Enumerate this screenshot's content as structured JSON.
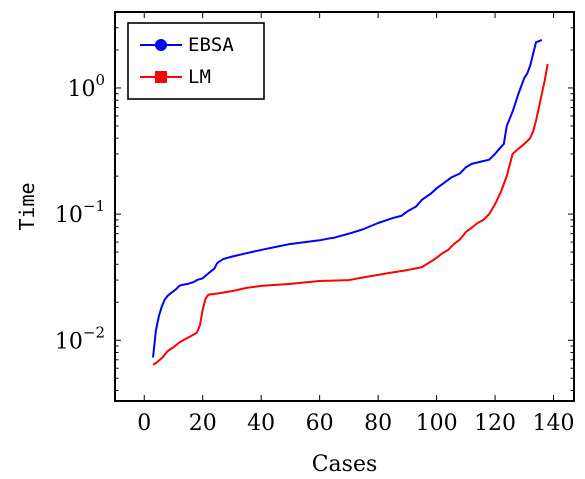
{
  "chart_data": {
    "type": "line",
    "xlabel": "Cases",
    "ylabel": "Time",
    "xlim": [
      -10,
      147
    ],
    "ylim": [
      0.0033,
      4.0
    ],
    "yscale": "log",
    "xticks": [
      0,
      20,
      40,
      60,
      80,
      100,
      120,
      140
    ],
    "xtick_labels": [
      "0",
      "20",
      "40",
      "60",
      "80",
      "100",
      "120",
      "140"
    ],
    "yticks": [
      0.01,
      0.1,
      1
    ],
    "ytick_labels": [
      {
        "base": "10",
        "exp": "−2"
      },
      {
        "base": "10",
        "exp": "−1"
      },
      {
        "base": "10",
        "exp": "0"
      }
    ],
    "grid": false,
    "legend_position": "top-left",
    "series": [
      {
        "name": "EBSA",
        "color": "#0000ff",
        "marker": "circle",
        "x": [
          3,
          4,
          5,
          6,
          7,
          8,
          9,
          10,
          11,
          12,
          13,
          15,
          17,
          18,
          20,
          22,
          24,
          25,
          27,
          30,
          35,
          40,
          45,
          50,
          55,
          60,
          63,
          65,
          70,
          75,
          80,
          85,
          88,
          90,
          93,
          95,
          98,
          100,
          103,
          105,
          108,
          110,
          112,
          115,
          118,
          120,
          122,
          123,
          124,
          126,
          128,
          130,
          131,
          132,
          134,
          136
        ],
        "y": [
          0.0073,
          0.012,
          0.0155,
          0.0185,
          0.021,
          0.0225,
          0.0235,
          0.0245,
          0.0255,
          0.027,
          0.0275,
          0.028,
          0.029,
          0.03,
          0.031,
          0.034,
          0.037,
          0.041,
          0.044,
          0.046,
          0.049,
          0.052,
          0.055,
          0.058,
          0.06,
          0.062,
          0.064,
          0.065,
          0.07,
          0.076,
          0.085,
          0.093,
          0.097,
          0.105,
          0.115,
          0.13,
          0.145,
          0.16,
          0.18,
          0.195,
          0.21,
          0.235,
          0.25,
          0.26,
          0.27,
          0.3,
          0.34,
          0.36,
          0.5,
          0.65,
          0.9,
          1.2,
          1.3,
          1.5,
          2.3,
          2.4
        ]
      },
      {
        "name": "LM",
        "color": "#ff0000",
        "marker": "square",
        "x": [
          3,
          4,
          6,
          8,
          10,
          12,
          14,
          16,
          18,
          19,
          20,
          21,
          22,
          25,
          30,
          35,
          40,
          50,
          60,
          70,
          75,
          80,
          85,
          90,
          95,
          98,
          100,
          102,
          104,
          105,
          106,
          108,
          110,
          112,
          114,
          116,
          118,
          120,
          122,
          124,
          126,
          128,
          130,
          132,
          133,
          134,
          135,
          136,
          137,
          138
        ],
        "y": [
          0.0064,
          0.0066,
          0.0072,
          0.0082,
          0.0088,
          0.0096,
          0.0102,
          0.0108,
          0.0115,
          0.013,
          0.0175,
          0.0215,
          0.023,
          0.0235,
          0.0245,
          0.026,
          0.027,
          0.028,
          0.0295,
          0.03,
          0.0315,
          0.033,
          0.0345,
          0.036,
          0.038,
          0.042,
          0.045,
          0.049,
          0.052,
          0.055,
          0.058,
          0.063,
          0.072,
          0.078,
          0.085,
          0.09,
          0.1,
          0.12,
          0.15,
          0.2,
          0.3,
          0.33,
          0.36,
          0.4,
          0.45,
          0.55,
          0.7,
          0.9,
          1.15,
          1.55
        ]
      }
    ]
  }
}
